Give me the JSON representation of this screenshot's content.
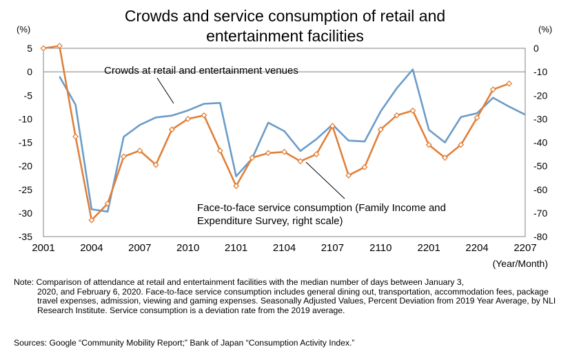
{
  "title_line1": "Crowds and service consumption of retail and",
  "title_line2": "entertainment facilities",
  "left_unit": "(%)",
  "right_unit": "(%)",
  "x_axis_unit": "(Year/Month)",
  "note_first_line": "Note: Comparison of attendance at retail and entertainment facilities with the median number of days between January 3,",
  "note_rest": "2020, and February 6, 2020. Face-to-face service consumption includes general dining out, transportation, accommodation fees, package travel expenses, admission, viewing and gaming expenses. Seasonally Adjusted Values, Percent Deviation from 2019 Year Average, by NLI Research Institute. Service consumption is a deviation rate from the 2019 average.",
  "sources": "Sources: Google “Community Mobility Report;” Bank of Japan “Consumption Activity Index.”",
  "chart_data": {
    "type": "line",
    "x": [
      "2001",
      "2002",
      "2003",
      "2004",
      "2005",
      "2006",
      "2007",
      "2008",
      "2009",
      "2010",
      "2011",
      "2012",
      "2101",
      "2102",
      "2103",
      "2104",
      "2105",
      "2106",
      "2107",
      "2108",
      "2109",
      "2110",
      "2111",
      "2112",
      "2201",
      "2202",
      "2203",
      "2204",
      "2205",
      "2206",
      "2207"
    ],
    "x_tick_labels": [
      "2001",
      "2004",
      "2007",
      "2010",
      "2101",
      "2104",
      "2107",
      "2110",
      "2201",
      "2204",
      "2207"
    ],
    "left_axis": {
      "ylim": [
        -35,
        5
      ],
      "ticks": [
        5,
        0,
        -5,
        -10,
        -15,
        -20,
        -25,
        -30,
        -35
      ]
    },
    "right_axis": {
      "ylim": [
        -80,
        0
      ],
      "ticks": [
        0,
        -10,
        -20,
        -30,
        -40,
        -50,
        -60,
        -70,
        -80
      ]
    },
    "series": [
      {
        "name": "Crowds at retail and entertainment venues",
        "axis": "left",
        "color": "#6b9bc8",
        "marker": "none",
        "values": [
          null,
          -1.0,
          -7.0,
          -29.2,
          -29.7,
          -13.8,
          -11.3,
          -9.7,
          -9.3,
          -8.2,
          -6.8,
          -6.6,
          -22.2,
          -18.4,
          -10.8,
          -12.6,
          -16.8,
          -14.3,
          -11.2,
          -14.6,
          -14.8,
          -8.4,
          -3.5,
          0.5,
          -12.3,
          -15.0,
          -9.6,
          -8.8,
          -5.5,
          -7.4,
          -9.1
        ]
      },
      {
        "name": "Face-to-face service consumption (Family Income and Expenditure Survey, right scale)",
        "axis": "right",
        "color": "#e0803a",
        "marker": "diamond",
        "values": [
          0.0,
          1.0,
          -37.5,
          -73.0,
          -66.0,
          -46.0,
          -43.5,
          -49.5,
          -34.5,
          -30.0,
          -28.5,
          -43.5,
          -58.5,
          -46.5,
          -44.5,
          -44.0,
          -48.0,
          -45.0,
          -33.0,
          -54.0,
          -50.5,
          -34.5,
          -28.5,
          -26.5,
          -41.0,
          -46.5,
          -41.0,
          -29.5,
          -17.5,
          -15.0,
          null
        ]
      }
    ]
  }
}
